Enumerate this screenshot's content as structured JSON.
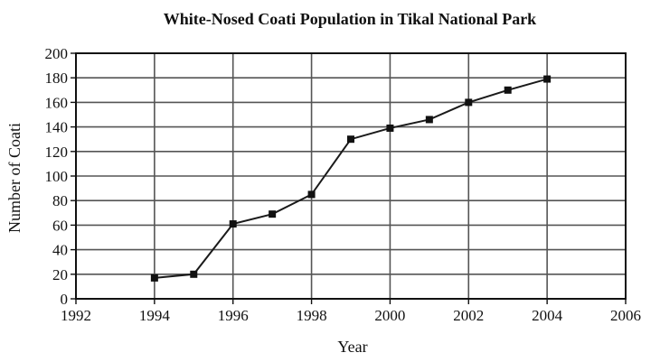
{
  "chart_data": {
    "type": "line",
    "title": "White-Nosed Coati Population in Tikal National Park",
    "xlabel": "Year",
    "ylabel": "Number of Coati",
    "xlim": [
      1992,
      2006
    ],
    "ylim": [
      0,
      200
    ],
    "x_ticks": [
      1992,
      1994,
      1996,
      1998,
      2000,
      2002,
      2004,
      2006
    ],
    "y_ticks": [
      0,
      20,
      40,
      60,
      80,
      100,
      120,
      140,
      160,
      180,
      200
    ],
    "grid": true,
    "series": [
      {
        "x": [
          1994,
          1995,
          1996,
          1997,
          1998,
          1999,
          2000,
          2001,
          2002,
          2003,
          2004
        ],
        "y": [
          17,
          20,
          61,
          69,
          85,
          130,
          139,
          146,
          160,
          170,
          179
        ]
      }
    ],
    "colors": {
      "line": "#1a1a1a",
      "grid": "#555555",
      "marker": "#111111"
    }
  }
}
